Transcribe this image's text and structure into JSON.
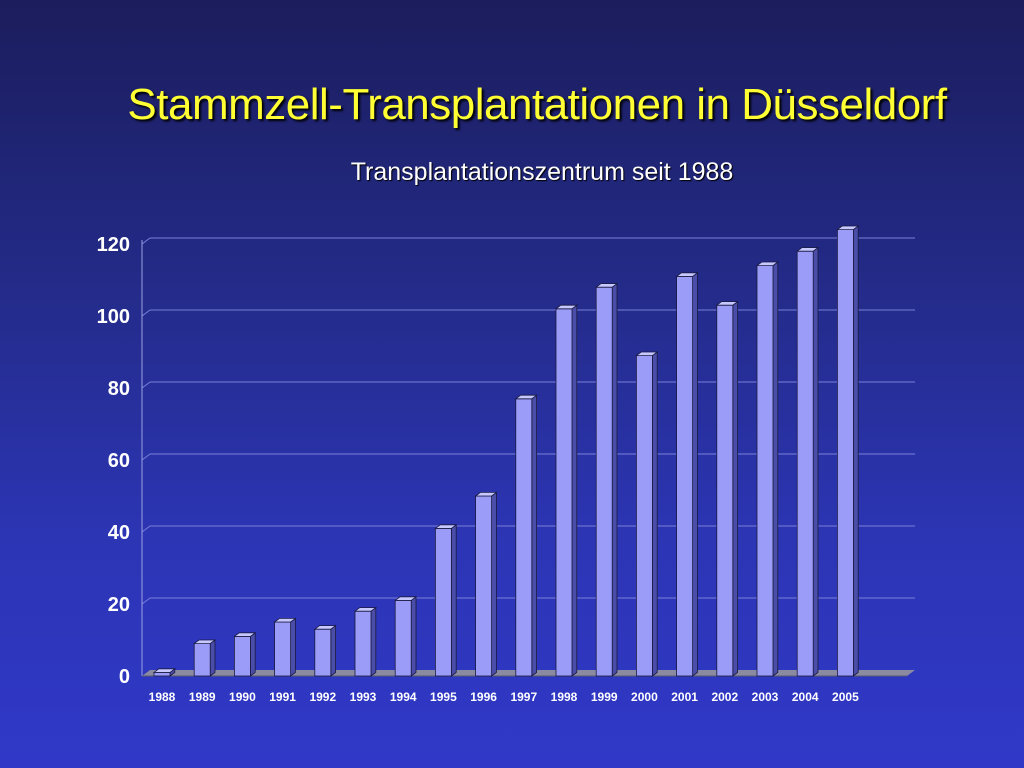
{
  "title": "Stammzell-Transplantationen in Düsseldorf",
  "subtitle": "Transplantationszentrum seit 1988",
  "colors": {
    "title": "#ffff33",
    "bar_front": "#9a9cf8",
    "bar_side": "#4b4ea8",
    "bar_top": "#c6c8ff",
    "gridline": "#7a80d8",
    "floor": "#8a8aa0"
  },
  "chart_data": {
    "type": "bar",
    "title": "Stammzell-Transplantationen in Düsseldorf",
    "subtitle": "Transplantationszentrum seit 1988",
    "xlabel": "",
    "ylabel": "",
    "categories": [
      "1988",
      "1989",
      "1990",
      "1991",
      "1992",
      "1993",
      "1994",
      "1995",
      "1996",
      "1997",
      "1998",
      "1999",
      "2000",
      "2001",
      "2002",
      "2003",
      "2004",
      "2005"
    ],
    "values": [
      1,
      9,
      11,
      15,
      13,
      18,
      21,
      41,
      50,
      77,
      102,
      108,
      89,
      111,
      103,
      114,
      118,
      124
    ],
    "ylim": [
      0,
      120
    ],
    "yticks": [
      0,
      20,
      40,
      60,
      80,
      100,
      120
    ],
    "grid": true,
    "legend": "none",
    "style": "3d"
  }
}
